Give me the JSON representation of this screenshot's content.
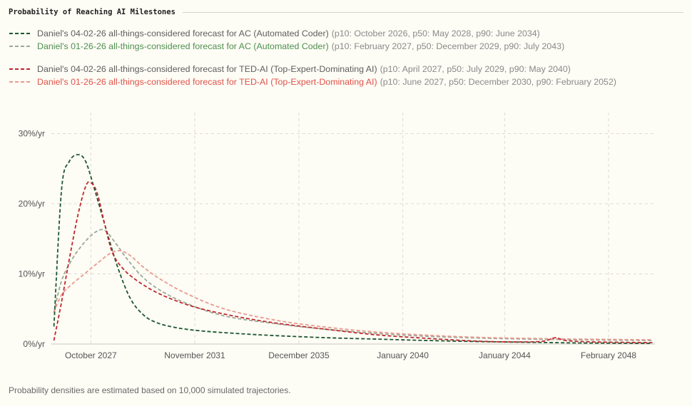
{
  "title": "Probability of Reaching AI Milestones",
  "footnote": "Probability densities are estimated based on 10,000 simulated trajectories.",
  "legend": [
    {
      "label": "Daniel's 04-02-26 all-things-considered forecast for AC (Automated Coder)",
      "details": "(p10: October 2026, p50: May 2028, p90: June 2034)",
      "color": "#1e5631",
      "label_color": "#5e5e5e"
    },
    {
      "label": "Daniel's 01-26-26 all-things-considered forecast for AC (Automated Coder)",
      "details": "(p10: February 2027, p50: December 2029, p90: July 2043)",
      "color": "#9aaa98",
      "label_color": "#4f8f4f"
    },
    {
      "label": "Daniel's 04-02-26 all-things-considered forecast for TED-AI (Top-Expert-Dominating AI)",
      "details": "(p10: April 2027, p50: July 2029, p90: May 2040)",
      "color": "#c0272d",
      "label_color": "#5e5e5e"
    },
    {
      "label": "Daniel's 01-26-26 all-things-considered forecast for TED-AI (Top-Expert-Dominating AI)",
      "details": "(p10: June 2027, p50: December 2030, p90: February 2052)",
      "color": "#e89a90",
      "label_color": "#e0534a"
    }
  ],
  "chart_data": {
    "type": "line",
    "title": "Probability of Reaching AI Milestones",
    "xlabel": "",
    "ylabel": "",
    "x_unit": "year (decimal)",
    "y_unit": "%/yr",
    "xlim": [
      2026.2,
      2049.9
    ],
    "ylim": [
      0,
      33
    ],
    "grid": true,
    "legend_position": "top",
    "x_ticks": [
      {
        "value": 2027.75,
        "label": "October 2027"
      },
      {
        "value": 2031.83,
        "label": "November 2031"
      },
      {
        "value": 2035.92,
        "label": "December 2035"
      },
      {
        "value": 2040.0,
        "label": "January 2040"
      },
      {
        "value": 2044.0,
        "label": "January 2044"
      },
      {
        "value": 2048.08,
        "label": "February 2048"
      }
    ],
    "y_ticks": [
      {
        "value": 0,
        "label": "0%/yr"
      },
      {
        "value": 10,
        "label": "10%/yr"
      },
      {
        "value": 20,
        "label": "20%/yr"
      },
      {
        "value": 30,
        "label": "30%/yr"
      }
    ],
    "series": [
      {
        "name": "Daniel's 04-02-26 all-things-considered forecast for AC (Automated Coder)",
        "color": "#1e5631",
        "points": [
          [
            2026.3,
            2.5
          ],
          [
            2026.6,
            22
          ],
          [
            2026.9,
            26
          ],
          [
            2027.25,
            27
          ],
          [
            2027.55,
            26
          ],
          [
            2027.9,
            22
          ],
          [
            2028.3,
            17
          ],
          [
            2028.8,
            11
          ],
          [
            2029.3,
            6.5
          ],
          [
            2029.8,
            4.2
          ],
          [
            2030.3,
            3.1
          ],
          [
            2031.0,
            2.4
          ],
          [
            2032.0,
            1.9
          ],
          [
            2033.5,
            1.5
          ],
          [
            2035.0,
            1.2
          ],
          [
            2037.0,
            0.9
          ],
          [
            2039.0,
            0.7
          ],
          [
            2041.0,
            0.5
          ],
          [
            2043.0,
            0.35
          ],
          [
            2045.0,
            0.25
          ],
          [
            2047.0,
            0.15
          ],
          [
            2049.8,
            0.1
          ]
        ]
      },
      {
        "name": "Daniel's 01-26-26 all-things-considered forecast for AC (Automated Coder)",
        "color": "#9aaa98",
        "points": [
          [
            2026.3,
            4.5
          ],
          [
            2026.6,
            9
          ],
          [
            2027.0,
            12
          ],
          [
            2027.5,
            14.5
          ],
          [
            2027.95,
            16
          ],
          [
            2028.3,
            16.2
          ],
          [
            2028.7,
            14.5
          ],
          [
            2029.2,
            12
          ],
          [
            2029.8,
            9.5
          ],
          [
            2030.5,
            7.6
          ],
          [
            2031.5,
            5.8
          ],
          [
            2033.0,
            4.0
          ],
          [
            2035.0,
            2.9
          ],
          [
            2037.0,
            2.1
          ],
          [
            2039.0,
            1.5
          ],
          [
            2041.0,
            1.1
          ],
          [
            2043.0,
            0.85
          ],
          [
            2045.0,
            0.7
          ],
          [
            2047.0,
            0.6
          ],
          [
            2049.8,
            0.5
          ]
        ]
      },
      {
        "name": "Daniel's 04-02-26 all-things-considered forecast for TED-AI (Top-Expert-Dominating AI)",
        "color": "#c0272d",
        "points": [
          [
            2026.3,
            0.5
          ],
          [
            2026.6,
            6
          ],
          [
            2026.9,
            12
          ],
          [
            2027.25,
            18.5
          ],
          [
            2027.55,
            22.5
          ],
          [
            2027.75,
            23
          ],
          [
            2028.0,
            21.5
          ],
          [
            2028.3,
            17
          ],
          [
            2028.6,
            13
          ],
          [
            2029.0,
            10.8
          ],
          [
            2029.5,
            9.2
          ],
          [
            2030.2,
            7.6
          ],
          [
            2031.0,
            6.3
          ],
          [
            2032.0,
            5.1
          ],
          [
            2033.5,
            3.9
          ],
          [
            2035.0,
            3.0
          ],
          [
            2037.0,
            2.1
          ],
          [
            2039.0,
            1.3
          ],
          [
            2041.0,
            0.8
          ],
          [
            2043.0,
            0.4
          ],
          [
            2044.5,
            0.3
          ],
          [
            2045.5,
            0.4
          ],
          [
            2046.0,
            0.9
          ],
          [
            2046.4,
            0.5
          ],
          [
            2047.5,
            0.3
          ],
          [
            2049.8,
            0.2
          ]
        ]
      },
      {
        "name": "Daniel's 01-26-26 all-things-considered forecast for TED-AI (Top-Expert-Dominating AI)",
        "color": "#e89a90",
        "points": [
          [
            2026.3,
            4.5
          ],
          [
            2026.6,
            7
          ],
          [
            2027.0,
            8.5
          ],
          [
            2027.5,
            10
          ],
          [
            2028.0,
            11.5
          ],
          [
            2028.5,
            12.9
          ],
          [
            2028.9,
            13.3
          ],
          [
            2029.3,
            12.6
          ],
          [
            2029.8,
            11
          ],
          [
            2030.5,
            9.2
          ],
          [
            2031.5,
            7.2
          ],
          [
            2033.0,
            5.0
          ],
          [
            2035.0,
            3.4
          ],
          [
            2037.0,
            2.4
          ],
          [
            2039.0,
            1.7
          ],
          [
            2041.0,
            1.25
          ],
          [
            2043.0,
            0.95
          ],
          [
            2045.0,
            0.8
          ],
          [
            2047.0,
            0.7
          ],
          [
            2049.8,
            0.6
          ]
        ]
      }
    ]
  }
}
